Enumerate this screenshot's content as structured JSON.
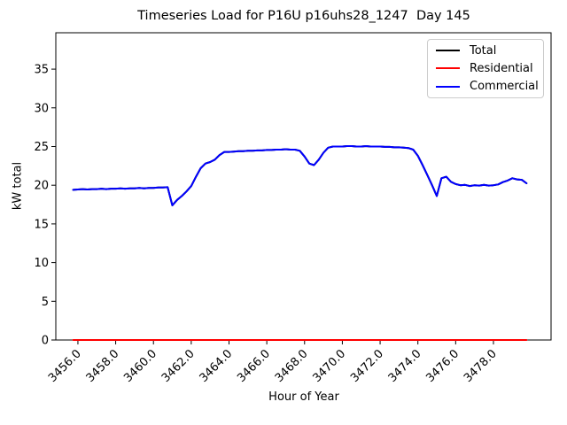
{
  "chart_data": {
    "type": "line",
    "title": "Timeseries Load for P16U p16uhs28_1247  Day 145",
    "xlabel": "Hour of Year",
    "ylabel": "kW total",
    "xlim": [
      3454.83,
      3481.05
    ],
    "ylim": [
      0,
      39.7
    ],
    "grid": false,
    "legend_position": "upper right",
    "xticks": [
      3456,
      3458,
      3460,
      3462,
      3464,
      3466,
      3468,
      3470,
      3472,
      3474,
      3476,
      3478
    ],
    "xtick_labels": [
      "3456.0",
      "3458.0",
      "3460.0",
      "3462.0",
      "3464.0",
      "3466.0",
      "3468.0",
      "3470.0",
      "3472.0",
      "3474.0",
      "3476.0",
      "3478.0"
    ],
    "yticks": [
      0,
      5,
      10,
      15,
      20,
      25,
      30,
      35
    ],
    "ytick_labels": [
      "0",
      "5",
      "10",
      "15",
      "20",
      "25",
      "30",
      "35"
    ],
    "series": [
      {
        "name": "Total",
        "color": "#000000",
        "points": [
          [
            3455.75,
            19.4
          ],
          [
            3456,
            19.45
          ],
          [
            3456.25,
            19.5
          ],
          [
            3456.5,
            19.45
          ],
          [
            3456.75,
            19.5
          ],
          [
            3457,
            19.5
          ],
          [
            3457.25,
            19.55
          ],
          [
            3457.5,
            19.5
          ],
          [
            3457.75,
            19.55
          ],
          [
            3458,
            19.55
          ],
          [
            3458.25,
            19.6
          ],
          [
            3458.5,
            19.55
          ],
          [
            3458.75,
            19.6
          ],
          [
            3459,
            19.6
          ],
          [
            3459.25,
            19.65
          ],
          [
            3459.5,
            19.6
          ],
          [
            3459.75,
            19.65
          ],
          [
            3460,
            19.65
          ],
          [
            3460.25,
            19.7
          ],
          [
            3460.5,
            19.7
          ],
          [
            3460.75,
            19.75
          ],
          [
            3461,
            17.4
          ],
          [
            3461.25,
            18.1
          ],
          [
            3461.5,
            18.6
          ],
          [
            3461.75,
            19.2
          ],
          [
            3462,
            19.9
          ],
          [
            3462.25,
            21.1
          ],
          [
            3462.5,
            22.2
          ],
          [
            3462.75,
            22.8
          ],
          [
            3463,
            23
          ],
          [
            3463.25,
            23.3
          ],
          [
            3463.5,
            23.9
          ],
          [
            3463.75,
            24.3
          ],
          [
            3464,
            24.3
          ],
          [
            3464.25,
            24.35
          ],
          [
            3464.5,
            24.4
          ],
          [
            3464.75,
            24.4
          ],
          [
            3465,
            24.45
          ],
          [
            3465.25,
            24.45
          ],
          [
            3465.5,
            24.5
          ],
          [
            3465.75,
            24.5
          ],
          [
            3466,
            24.55
          ],
          [
            3466.25,
            24.55
          ],
          [
            3466.5,
            24.6
          ],
          [
            3466.75,
            24.6
          ],
          [
            3467,
            24.65
          ],
          [
            3467.25,
            24.6
          ],
          [
            3467.5,
            24.6
          ],
          [
            3467.75,
            24.45
          ],
          [
            3468,
            23.7
          ],
          [
            3468.25,
            22.8
          ],
          [
            3468.5,
            22.6
          ],
          [
            3468.75,
            23.3
          ],
          [
            3469,
            24.2
          ],
          [
            3469.25,
            24.85
          ],
          [
            3469.5,
            25
          ],
          [
            3469.75,
            25
          ],
          [
            3470,
            25
          ],
          [
            3470.25,
            25.05
          ],
          [
            3470.5,
            25.05
          ],
          [
            3470.75,
            25
          ],
          [
            3471,
            25
          ],
          [
            3471.25,
            25.05
          ],
          [
            3471.5,
            25
          ],
          [
            3471.75,
            25
          ],
          [
            3472,
            25
          ],
          [
            3472.25,
            24.95
          ],
          [
            3472.5,
            24.95
          ],
          [
            3472.75,
            24.9
          ],
          [
            3473,
            24.9
          ],
          [
            3473.25,
            24.85
          ],
          [
            3473.5,
            24.8
          ],
          [
            3473.75,
            24.6
          ],
          [
            3474,
            23.8
          ],
          [
            3474.25,
            22.6
          ],
          [
            3474.5,
            21.3
          ],
          [
            3474.75,
            20
          ],
          [
            3475,
            18.6
          ],
          [
            3475.25,
            20.9
          ],
          [
            3475.5,
            21.1
          ],
          [
            3475.75,
            20.45
          ],
          [
            3476,
            20.15
          ],
          [
            3476.25,
            20
          ],
          [
            3476.5,
            20.05
          ],
          [
            3476.75,
            19.9
          ],
          [
            3477,
            20
          ],
          [
            3477.25,
            19.95
          ],
          [
            3477.5,
            20.05
          ],
          [
            3477.75,
            19.95
          ],
          [
            3478,
            20
          ],
          [
            3478.25,
            20.1
          ],
          [
            3478.5,
            20.4
          ],
          [
            3478.75,
            20.6
          ],
          [
            3479,
            20.9
          ],
          [
            3479.25,
            20.75
          ],
          [
            3479.5,
            20.7
          ],
          [
            3479.75,
            20.25
          ]
        ]
      },
      {
        "name": "Residential",
        "color": "#ff0000",
        "points": [
          [
            3455.75,
            0
          ],
          [
            3479.75,
            0
          ]
        ]
      },
      {
        "name": "Commercial",
        "color": "#0000ff",
        "points": [
          [
            3455.75,
            19.4
          ],
          [
            3456,
            19.45
          ],
          [
            3456.25,
            19.5
          ],
          [
            3456.5,
            19.45
          ],
          [
            3456.75,
            19.5
          ],
          [
            3457,
            19.5
          ],
          [
            3457.25,
            19.55
          ],
          [
            3457.5,
            19.5
          ],
          [
            3457.75,
            19.55
          ],
          [
            3458,
            19.55
          ],
          [
            3458.25,
            19.6
          ],
          [
            3458.5,
            19.55
          ],
          [
            3458.75,
            19.6
          ],
          [
            3459,
            19.6
          ],
          [
            3459.25,
            19.65
          ],
          [
            3459.5,
            19.6
          ],
          [
            3459.75,
            19.65
          ],
          [
            3460,
            19.65
          ],
          [
            3460.25,
            19.7
          ],
          [
            3460.5,
            19.7
          ],
          [
            3460.75,
            19.75
          ],
          [
            3461,
            17.4
          ],
          [
            3461.25,
            18.1
          ],
          [
            3461.5,
            18.6
          ],
          [
            3461.75,
            19.2
          ],
          [
            3462,
            19.9
          ],
          [
            3462.25,
            21.1
          ],
          [
            3462.5,
            22.2
          ],
          [
            3462.75,
            22.8
          ],
          [
            3463,
            23
          ],
          [
            3463.25,
            23.3
          ],
          [
            3463.5,
            23.9
          ],
          [
            3463.75,
            24.3
          ],
          [
            3464,
            24.3
          ],
          [
            3464.25,
            24.35
          ],
          [
            3464.5,
            24.4
          ],
          [
            3464.75,
            24.4
          ],
          [
            3465,
            24.45
          ],
          [
            3465.25,
            24.45
          ],
          [
            3465.5,
            24.5
          ],
          [
            3465.75,
            24.5
          ],
          [
            3466,
            24.55
          ],
          [
            3466.25,
            24.55
          ],
          [
            3466.5,
            24.6
          ],
          [
            3466.75,
            24.6
          ],
          [
            3467,
            24.65
          ],
          [
            3467.25,
            24.6
          ],
          [
            3467.5,
            24.6
          ],
          [
            3467.75,
            24.45
          ],
          [
            3468,
            23.7
          ],
          [
            3468.25,
            22.8
          ],
          [
            3468.5,
            22.6
          ],
          [
            3468.75,
            23.3
          ],
          [
            3469,
            24.2
          ],
          [
            3469.25,
            24.85
          ],
          [
            3469.5,
            25
          ],
          [
            3469.75,
            25
          ],
          [
            3470,
            25
          ],
          [
            3470.25,
            25.05
          ],
          [
            3470.5,
            25.05
          ],
          [
            3470.75,
            25
          ],
          [
            3471,
            25
          ],
          [
            3471.25,
            25.05
          ],
          [
            3471.5,
            25
          ],
          [
            3471.75,
            25
          ],
          [
            3472,
            25
          ],
          [
            3472.25,
            24.95
          ],
          [
            3472.5,
            24.95
          ],
          [
            3472.75,
            24.9
          ],
          [
            3473,
            24.9
          ],
          [
            3473.25,
            24.85
          ],
          [
            3473.5,
            24.8
          ],
          [
            3473.75,
            24.6
          ],
          [
            3474,
            23.8
          ],
          [
            3474.25,
            22.6
          ],
          [
            3474.5,
            21.3
          ],
          [
            3474.75,
            20
          ],
          [
            3475,
            18.6
          ],
          [
            3475.25,
            20.9
          ],
          [
            3475.5,
            21.1
          ],
          [
            3475.75,
            20.45
          ],
          [
            3476,
            20.15
          ],
          [
            3476.25,
            20
          ],
          [
            3476.5,
            20.05
          ],
          [
            3476.75,
            19.9
          ],
          [
            3477,
            20
          ],
          [
            3477.25,
            19.95
          ],
          [
            3477.5,
            20.05
          ],
          [
            3477.75,
            19.95
          ],
          [
            3478,
            20
          ],
          [
            3478.25,
            20.1
          ],
          [
            3478.5,
            20.4
          ],
          [
            3478.75,
            20.6
          ],
          [
            3479,
            20.9
          ],
          [
            3479.25,
            20.75
          ],
          [
            3479.5,
            20.7
          ],
          [
            3479.75,
            20.25
          ]
        ]
      }
    ]
  }
}
